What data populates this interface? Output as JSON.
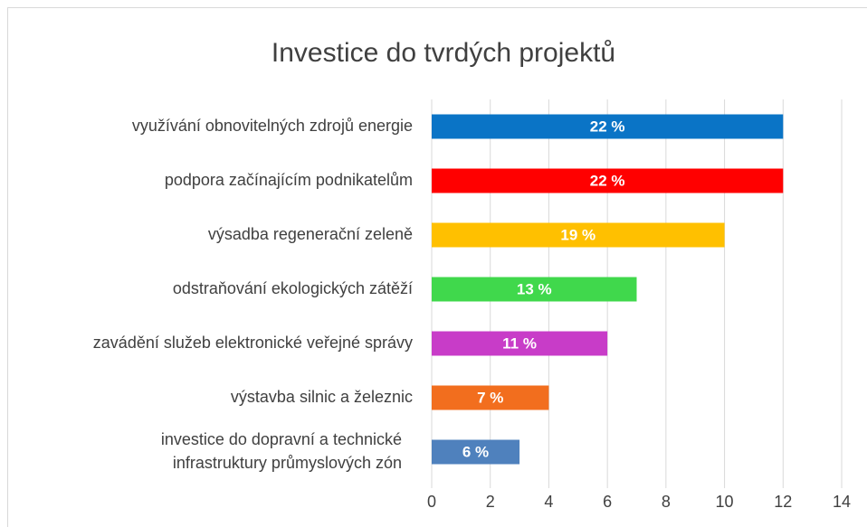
{
  "chart_data": {
    "type": "bar",
    "orientation": "horizontal",
    "title": "Investice do tvrdých projektů",
    "categories": [
      "využívání obnovitelných zdrojů energie",
      "podpora začínajícím podnikatelům",
      "výsadba regenerační zeleně",
      "odstraňování ekologických zátěží",
      "zavádění služeb elektronické veřejné správy",
      "výstavba silnic a železnic",
      "investice do dopravní a technické\ninfrastruktury průmyslových zón"
    ],
    "values": [
      12,
      12,
      10,
      7,
      6,
      4,
      3
    ],
    "bar_labels": [
      "22 %",
      "22 %",
      "19 %",
      "13 %",
      "11 %",
      "7 %",
      "6 %"
    ],
    "colors": [
      "#0a74c6",
      "#ff0000",
      "#ffc000",
      "#40d84c",
      "#c83cc8",
      "#f26e1e",
      "#4f81bd"
    ],
    "xlim": [
      0,
      14
    ],
    "xticks": [
      0,
      2,
      4,
      6,
      8,
      10,
      12,
      14
    ],
    "grid": true
  }
}
